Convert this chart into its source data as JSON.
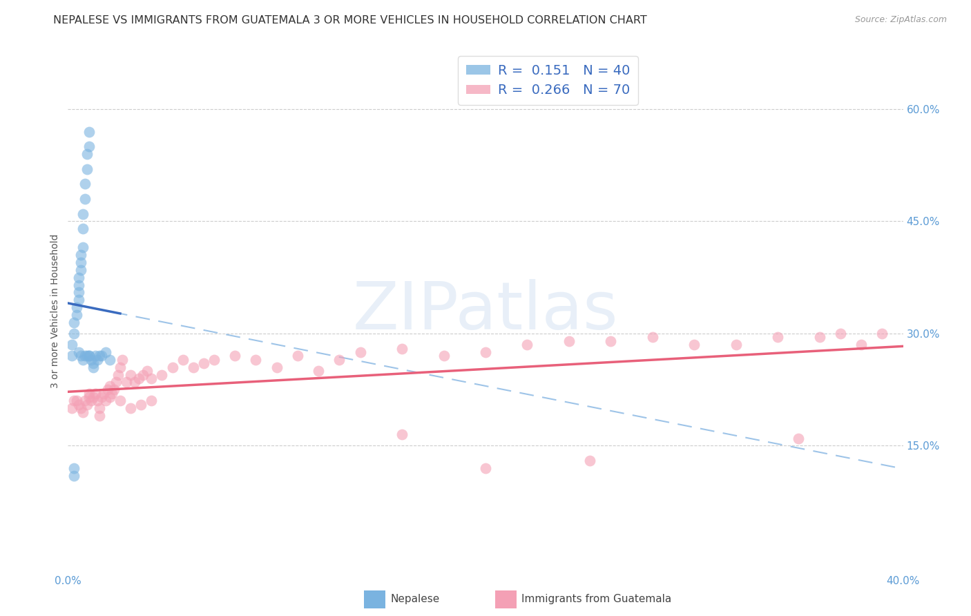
{
  "title": "NEPALESE VS IMMIGRANTS FROM GUATEMALA 3 OR MORE VEHICLES IN HOUSEHOLD CORRELATION CHART",
  "source": "Source: ZipAtlas.com",
  "ylabel": "3 or more Vehicles in Household",
  "xlim": [
    0.0,
    0.4
  ],
  "ylim": [
    -0.02,
    0.68
  ],
  "y_ticks_right": [
    0.15,
    0.3,
    0.45,
    0.6
  ],
  "y_tick_labels_right": [
    "15.0%",
    "30.0%",
    "45.0%",
    "60.0%"
  ],
  "grid_color": "#cccccc",
  "background_color": "#ffffff",
  "blue_color": "#7ab3e0",
  "pink_color": "#f4a0b5",
  "blue_line_color": "#3a6bbf",
  "pink_line_color": "#e8607a",
  "dashed_line_color": "#9ec4e8",
  "legend_R1": "0.151",
  "legend_N1": "40",
  "legend_R2": "0.266",
  "legend_N2": "70",
  "legend_label1": "Nepalese",
  "legend_label2": "Immigrants from Guatemala",
  "title_fontsize": 11.5,
  "source_fontsize": 9,
  "axis_label_fontsize": 10,
  "tick_fontsize": 11,
  "legend_fontsize": 14,
  "watermark": "ZIPatlas",
  "blue_scatter_x": [
    0.002,
    0.002,
    0.003,
    0.003,
    0.004,
    0.004,
    0.005,
    0.005,
    0.005,
    0.005,
    0.006,
    0.006,
    0.006,
    0.007,
    0.007,
    0.007,
    0.008,
    0.008,
    0.009,
    0.009,
    0.01,
    0.01,
    0.01,
    0.011,
    0.012,
    0.012,
    0.013,
    0.014,
    0.015,
    0.016,
    0.018,
    0.02,
    0.003,
    0.005,
    0.006,
    0.007,
    0.008,
    0.009,
    0.01,
    0.003
  ],
  "blue_scatter_y": [
    0.27,
    0.285,
    0.3,
    0.315,
    0.325,
    0.335,
    0.345,
    0.355,
    0.365,
    0.375,
    0.385,
    0.395,
    0.405,
    0.415,
    0.44,
    0.46,
    0.48,
    0.5,
    0.52,
    0.54,
    0.55,
    0.57,
    0.27,
    0.265,
    0.26,
    0.255,
    0.27,
    0.265,
    0.27,
    0.27,
    0.275,
    0.265,
    0.12,
    0.275,
    0.27,
    0.265,
    0.27,
    0.27,
    0.27,
    0.11
  ],
  "pink_scatter_x": [
    0.002,
    0.003,
    0.004,
    0.005,
    0.006,
    0.007,
    0.008,
    0.009,
    0.01,
    0.01,
    0.011,
    0.012,
    0.013,
    0.014,
    0.015,
    0.016,
    0.017,
    0.018,
    0.019,
    0.02,
    0.021,
    0.022,
    0.023,
    0.024,
    0.025,
    0.026,
    0.028,
    0.03,
    0.032,
    0.034,
    0.036,
    0.038,
    0.04,
    0.045,
    0.05,
    0.055,
    0.06,
    0.065,
    0.07,
    0.08,
    0.09,
    0.1,
    0.11,
    0.12,
    0.13,
    0.14,
    0.16,
    0.18,
    0.2,
    0.22,
    0.24,
    0.26,
    0.28,
    0.3,
    0.32,
    0.34,
    0.36,
    0.37,
    0.38,
    0.39,
    0.015,
    0.02,
    0.025,
    0.03,
    0.035,
    0.04,
    0.25,
    0.35,
    0.2,
    0.16
  ],
  "pink_scatter_y": [
    0.2,
    0.21,
    0.21,
    0.205,
    0.2,
    0.195,
    0.21,
    0.205,
    0.215,
    0.22,
    0.21,
    0.215,
    0.22,
    0.21,
    0.2,
    0.215,
    0.22,
    0.21,
    0.225,
    0.23,
    0.22,
    0.225,
    0.235,
    0.245,
    0.255,
    0.265,
    0.235,
    0.245,
    0.235,
    0.24,
    0.245,
    0.25,
    0.24,
    0.245,
    0.255,
    0.265,
    0.255,
    0.26,
    0.265,
    0.27,
    0.265,
    0.255,
    0.27,
    0.25,
    0.265,
    0.275,
    0.28,
    0.27,
    0.275,
    0.285,
    0.29,
    0.29,
    0.295,
    0.285,
    0.285,
    0.295,
    0.295,
    0.3,
    0.285,
    0.3,
    0.19,
    0.215,
    0.21,
    0.2,
    0.205,
    0.21,
    0.13,
    0.16,
    0.12,
    0.165
  ]
}
